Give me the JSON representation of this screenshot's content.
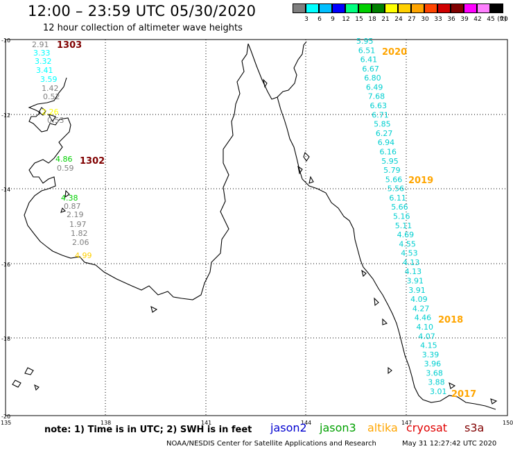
{
  "header": {
    "title": "12:00 – 23:59 UTC 05/30/2020",
    "subtitle": "12 hour collection of altimeter wave heights"
  },
  "color_scale": {
    "unit": "(ft)",
    "bins": [
      {
        "label": "3",
        "color": "#7f7f7f"
      },
      {
        "label": "6",
        "color": "#00ffff"
      },
      {
        "label": "9",
        "color": "#00bfff"
      },
      {
        "label": "12",
        "color": "#0000ff"
      },
      {
        "label": "15",
        "color": "#00ff7f"
      },
      {
        "label": "18",
        "color": "#00d000"
      },
      {
        "label": "21",
        "color": "#008000"
      },
      {
        "label": "24",
        "color": "#ffff00"
      },
      {
        "label": "27",
        "color": "#ffd000"
      },
      {
        "label": "30",
        "color": "#ffa500"
      },
      {
        "label": "33",
        "color": "#ff4500"
      },
      {
        "label": "36",
        "color": "#d00000"
      },
      {
        "label": "39",
        "color": "#800000"
      },
      {
        "label": "42",
        "color": "#ff00ff"
      },
      {
        "label": "45",
        "color": "#ff80ff"
      },
      {
        "label": "70",
        "color": "#000000"
      }
    ]
  },
  "axes": {
    "lat_labels": [
      "-10",
      "-12",
      "-14",
      "-16",
      "-18",
      "-20"
    ],
    "lon_labels": [
      "135",
      "138",
      "141",
      "144",
      "147",
      "150"
    ]
  },
  "tracks": [
    {
      "label": "1303",
      "color": "#800000",
      "label_row": 0
    },
    {
      "label": "1302",
      "color": "#800000",
      "label_row": 1
    },
    {
      "label": "2020",
      "color": "#ffa500",
      "label_row": 2
    },
    {
      "label": "2019",
      "color": "#ffa500",
      "label_row": 3
    },
    {
      "label": "2018",
      "color": "#ffa500",
      "label_row": 4
    },
    {
      "label": "2017",
      "color": "#ffa500",
      "label_row": 5
    }
  ],
  "track_west_north": [
    "2.91",
    "3.33",
    "3.32",
    "3.41",
    "3.59",
    "1.42",
    "0.52",
    "2.26",
    "0.53"
  ],
  "track_west_south": [
    "4.86",
    "0.59",
    "4.38",
    "0.87",
    "2.19",
    "1.97",
    "1.82",
    "2.06",
    "4.99"
  ],
  "track_east": [
    "5.95",
    "6.51",
    "6.41",
    "6.67",
    "6.80",
    "6.49",
    "7.68",
    "6.63",
    "6.71",
    "5.85",
    "6.27",
    "6.94",
    "6.16",
    "5.95",
    "5.79",
    "5.66",
    "5.56",
    "6.11",
    "5.66",
    "5.16",
    "5.11",
    "4.69",
    "4.55",
    "4.53",
    "4.13",
    "4.13",
    "3.91",
    "3.91",
    "4.09",
    "4.27",
    "4.46",
    "4.10",
    "4.07",
    "4.15",
    "3.39",
    "3.96",
    "3.68",
    "3.88",
    "3.01"
  ],
  "footer": {
    "note": "note:  1) Time is in UTC;  2) SWH is in feet",
    "legend": [
      {
        "name": "jason2",
        "color": "#0000d0"
      },
      {
        "name": "jason3",
        "color": "#00a000"
      },
      {
        "name": "altika",
        "color": "#ffa500"
      },
      {
        "name": "cryosat",
        "color": "#e00000"
      },
      {
        "name": "s3a",
        "color": "#800000"
      }
    ],
    "credit": "NOAA/NESDIS Center for Satellite Applications and Research",
    "timestamp": "May 31 12:27:42 UTC 2020"
  }
}
